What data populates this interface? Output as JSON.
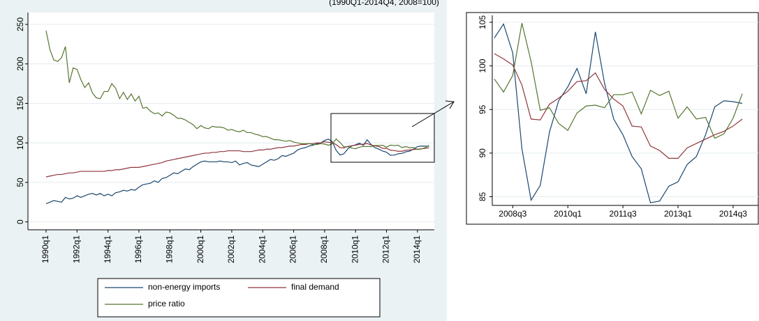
{
  "chart_data": [
    {
      "type": "line",
      "subtitle": "(1990Q1-2014Q4, 2008=100)",
      "categories": [
        "1990q1",
        null,
        null,
        null,
        null,
        null,
        null,
        null,
        "1992q1",
        null,
        null,
        null,
        null,
        null,
        null,
        null,
        "1994q1",
        null,
        null,
        null,
        null,
        null,
        null,
        null,
        "1996q1",
        null,
        null,
        null,
        null,
        null,
        null,
        null,
        "1998q1",
        null,
        null,
        null,
        null,
        null,
        null,
        null,
        "2000q1",
        null,
        null,
        null,
        null,
        null,
        null,
        null,
        "2002q1",
        null,
        null,
        null,
        null,
        null,
        null,
        null,
        "2004q1",
        null,
        null,
        null,
        null,
        null,
        null,
        null,
        "2006q1",
        null,
        null,
        null,
        null,
        null,
        null,
        null,
        "2008q1",
        null,
        null,
        null,
        null,
        null,
        null,
        null,
        "2010q1",
        null,
        null,
        null,
        null,
        null,
        null,
        null,
        "2012q1",
        null,
        null,
        null,
        null,
        null,
        null,
        null,
        "2014q1",
        null,
        null,
        null
      ],
      "ylim": [
        -10,
        265
      ],
      "yticks": [
        0,
        50,
        100,
        150,
        200,
        250
      ],
      "grid": true,
      "legend": "bottom",
      "series": [
        {
          "name": "non-energy imports",
          "color": "#1a476f",
          "values": [
            23,
            25,
            27,
            26,
            25,
            31,
            29,
            30,
            33,
            31,
            33,
            35,
            36,
            34,
            36,
            33,
            35,
            33,
            37,
            38,
            40,
            39,
            41,
            40,
            44,
            47,
            48,
            49,
            52,
            50,
            55,
            56,
            59,
            62,
            61,
            64,
            67,
            66,
            70,
            73,
            76,
            77,
            76,
            76,
            76,
            77,
            76,
            76,
            75,
            77,
            72,
            74,
            75,
            72,
            71,
            70,
            73,
            76,
            79,
            78,
            80,
            84,
            83,
            85,
            87,
            91,
            93,
            94,
            96,
            97,
            99,
            100,
            103.2,
            104.8,
            101.5,
            90.5,
            84.6,
            86.3,
            92.4,
            96,
            97.6,
            99.7,
            96.8,
            103.9,
            98,
            93.9,
            92.1,
            89.6,
            88.2,
            84.3,
            84.5,
            86.2,
            86.7,
            88.7,
            89.6,
            92.1,
            95.3,
            96,
            95.9,
            95.7
          ]
        },
        {
          "name": "final demand",
          "color": "#90353b",
          "values": [
            57,
            58,
            59,
            60,
            60,
            61,
            62,
            62,
            63,
            64,
            64,
            64,
            64,
            64,
            64,
            64,
            65,
            65,
            66,
            66,
            67,
            68,
            69,
            69,
            69,
            70,
            71,
            72,
            73,
            74,
            75,
            77,
            78,
            79,
            80,
            81,
            82,
            83,
            84,
            85,
            86,
            87,
            87,
            88,
            88,
            89,
            89,
            90,
            90,
            90,
            90,
            89,
            89,
            89,
            90,
            91,
            91,
            92,
            92,
            93,
            94,
            94,
            95,
            96,
            96,
            97,
            98,
            98,
            99,
            99,
            100,
            100,
            101.4,
            100.8,
            100.1,
            97.8,
            93.9,
            93.8,
            95.6,
            96.3,
            97.1,
            98.2,
            98.3,
            99.2,
            97.3,
            96.2,
            95.4,
            93.1,
            93.0,
            90.8,
            90.3,
            89.4,
            89.4,
            90.6,
            91.1,
            91.6,
            92.1,
            92.5,
            93.1,
            93.9
          ]
        },
        {
          "name": "price ratio",
          "color": "#55752f",
          "values": [
            242,
            218,
            205,
            203,
            208,
            222,
            176,
            195,
            193,
            180,
            170,
            176,
            163,
            157,
            156,
            165,
            165,
            175,
            169,
            156,
            164,
            155,
            162,
            153,
            159,
            144,
            145,
            140,
            137,
            138,
            134,
            139,
            138,
            135,
            131,
            131,
            129,
            126,
            123,
            118,
            122,
            119,
            118,
            121,
            120,
            120,
            119,
            116,
            117,
            115,
            114,
            116,
            113,
            113,
            111,
            110,
            108,
            108,
            106,
            104,
            104,
            103,
            102,
            103,
            101,
            100,
            99,
            99,
            99,
            98,
            98,
            99,
            98.5,
            97.0,
            98.9,
            104.9,
            100.5,
            94.9,
            95.2,
            93.4,
            92.6,
            94.6,
            95.4,
            95.5,
            95.2,
            96.7,
            96.7,
            97.0,
            94.5,
            97.2,
            96.6,
            97.1,
            94.0,
            95.3,
            93.9,
            94.1,
            91.7,
            92.2,
            94.0,
            96.8
          ]
        }
      ]
    },
    {
      "type": "line",
      "categories": [
        null,
        null,
        "2008q3",
        null,
        null,
        null,
        null,
        null,
        "2010q1",
        null,
        null,
        null,
        null,
        null,
        "2011q3",
        null,
        null,
        null,
        null,
        null,
        "2013q1",
        null,
        null,
        null,
        null,
        null,
        "2014q3",
        null
      ],
      "ylim": [
        84,
        105.8
      ],
      "yticks": [
        85,
        90,
        95,
        100,
        105
      ],
      "grid": true,
      "series": [
        {
          "color": "#1a476f",
          "values": [
            103.2,
            104.8,
            101.5,
            90.5,
            84.6,
            86.3,
            92.4,
            96,
            97.6,
            99.7,
            96.8,
            103.9,
            98,
            93.9,
            92.1,
            89.6,
            88.2,
            84.3,
            84.5,
            86.2,
            86.7,
            88.7,
            89.6,
            92.1,
            95.3,
            96,
            95.9,
            95.7
          ]
        },
        {
          "color": "#90353b",
          "values": [
            101.4,
            100.8,
            100.1,
            97.8,
            93.9,
            93.8,
            95.6,
            96.3,
            97.1,
            98.2,
            98.3,
            99.2,
            97.3,
            96.2,
            95.4,
            93.1,
            93.0,
            90.8,
            90.3,
            89.4,
            89.4,
            90.6,
            91.1,
            91.6,
            92.1,
            92.5,
            93.1,
            93.9
          ]
        },
        {
          "color": "#55752f",
          "values": [
            98.5,
            97.0,
            98.9,
            104.9,
            100.5,
            94.9,
            95.2,
            93.4,
            92.6,
            94.6,
            95.4,
            95.5,
            95.2,
            96.7,
            96.7,
            97.0,
            94.5,
            97.2,
            96.6,
            97.1,
            94.0,
            95.3,
            93.9,
            94.1,
            91.7,
            92.2,
            94.0,
            96.8
          ]
        }
      ]
    }
  ]
}
